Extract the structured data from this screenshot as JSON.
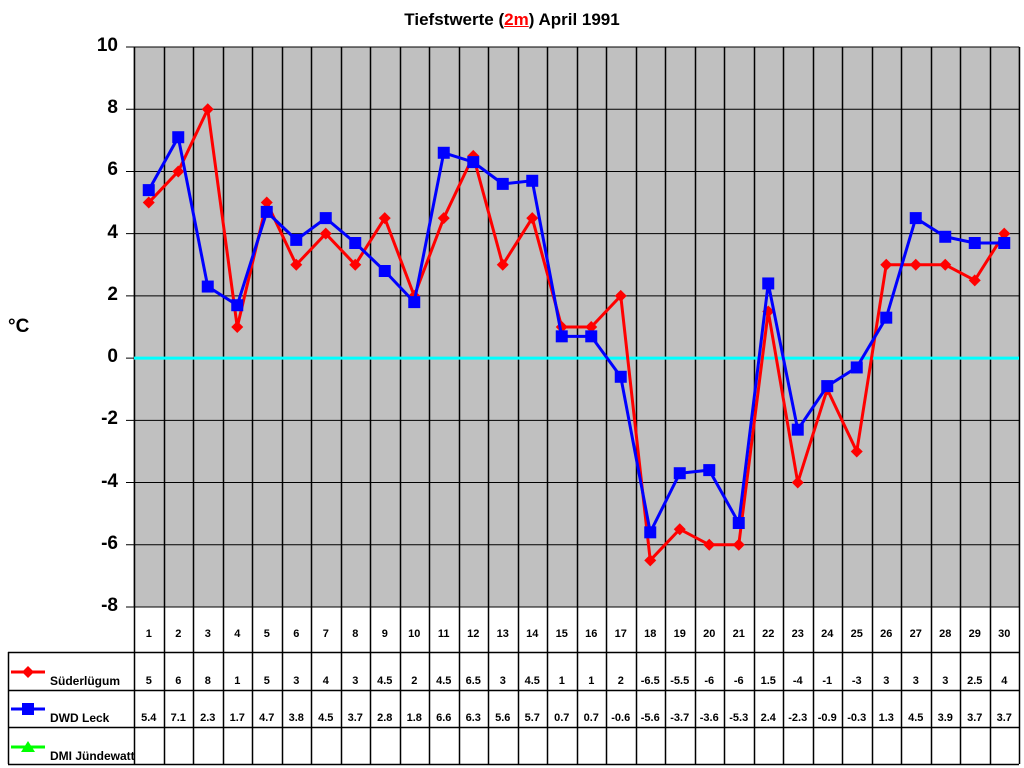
{
  "chart_data": {
    "type": "line",
    "title": "Tiefstwerte (2m) April 1991",
    "title_parts": {
      "before": "Tiefstwerte (",
      "highlight": "2m",
      "after": ") April 1991"
    },
    "xlabel": "",
    "ylabel": "°C",
    "ylim": [
      -8,
      10
    ],
    "yticks": [
      "10",
      "8",
      "6",
      "4",
      "2",
      "0",
      "-2",
      "-4",
      "-6",
      "-8"
    ],
    "grid": true,
    "zero_line_color": "#00ffff",
    "plot_background": "#c0c0c0",
    "legend_position": "bottom-table",
    "categories": [
      "1",
      "2",
      "3",
      "4",
      "5",
      "6",
      "7",
      "8",
      "9",
      "10",
      "11",
      "12",
      "13",
      "14",
      "15",
      "16",
      "17",
      "18",
      "19",
      "20",
      "21",
      "22",
      "23",
      "24",
      "25",
      "26",
      "27",
      "28",
      "29",
      "30"
    ],
    "series": [
      {
        "name": "Süderlügum",
        "color": "#ff0000",
        "marker": "diamond",
        "values": [
          5,
          6,
          8,
          1,
          5,
          3,
          4,
          3,
          4.5,
          2,
          4.5,
          6.5,
          3,
          4.5,
          1,
          1,
          2,
          -6.5,
          -5.5,
          -6,
          -6,
          1.5,
          -4,
          -1,
          -3,
          3,
          3,
          3,
          2.5,
          4
        ]
      },
      {
        "name": "DWD Leck",
        "color": "#0000ff",
        "marker": "square",
        "values": [
          5.4,
          7.1,
          2.3,
          1.7,
          4.7,
          3.8,
          4.5,
          3.7,
          2.8,
          1.8,
          6.6,
          6.3,
          5.6,
          5.7,
          0.7,
          0.7,
          -0.6,
          -5.6,
          -3.7,
          -3.6,
          -5.3,
          2.4,
          -2.3,
          -0.9,
          -0.3,
          1.3,
          4.5,
          3.9,
          3.7,
          3.7
        ]
      },
      {
        "name": "DMI Jündewatt",
        "color": "#00ff00",
        "marker": "triangle",
        "values": [
          null,
          null,
          null,
          null,
          null,
          null,
          null,
          null,
          null,
          null,
          null,
          null,
          null,
          null,
          null,
          null,
          null,
          null,
          null,
          null,
          null,
          null,
          null,
          null,
          null,
          null,
          null,
          null,
          null,
          null
        ]
      }
    ]
  }
}
